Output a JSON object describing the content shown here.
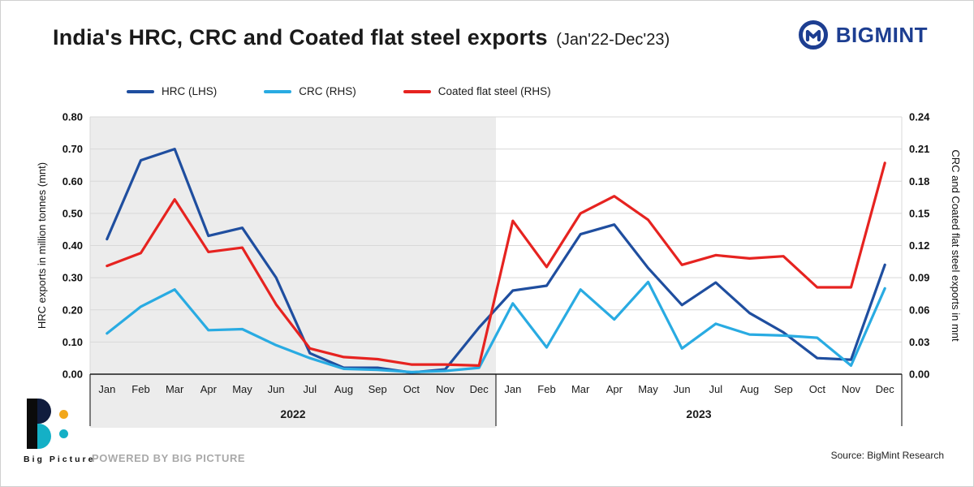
{
  "header": {
    "title": "India's HRC, CRC and Coated flat steel exports",
    "subtitle": "(Jan'22-Dec'23)",
    "brand": "BIGMINT"
  },
  "legend": [
    {
      "label": "HRC (LHS)",
      "color": "#1f4e9f"
    },
    {
      "label": "CRC (RHS)",
      "color": "#29abe2"
    },
    {
      "label": "Coated flat steel (RHS)",
      "color": "#e62320"
    }
  ],
  "chart_data": {
    "type": "line",
    "x": [
      "Jan",
      "Feb",
      "Mar",
      "Apr",
      "May",
      "Jun",
      "Jul",
      "Aug",
      "Sep",
      "Oct",
      "Nov",
      "Dec",
      "Jan",
      "Feb",
      "Mar",
      "Apr",
      "May",
      "Jun",
      "Jul",
      "Aug",
      "Sep",
      "Oct",
      "Nov",
      "Dec"
    ],
    "year_groups": [
      {
        "label": "2022",
        "months": 12,
        "shaded": true
      },
      {
        "label": "2023",
        "months": 12,
        "shaded": false
      }
    ],
    "left_axis": {
      "label": "HRC exports in million tonnes (mnt)",
      "min": 0,
      "max": 0.8,
      "step": 0.1,
      "ticks": [
        "0.00",
        "0.10",
        "0.20",
        "0.30",
        "0.40",
        "0.50",
        "0.60",
        "0.70",
        "0.80"
      ]
    },
    "right_axis": {
      "label": "CRC and Coated flat steel exports in mnt",
      "min": 0,
      "max": 0.24,
      "step": 0.03,
      "ticks": [
        "0.00",
        "0.03",
        "0.06",
        "0.09",
        "0.12",
        "0.15",
        "0.18",
        "0.21",
        "0.24"
      ]
    },
    "grid": true,
    "legend_position": "top-left",
    "series": [
      {
        "name": "HRC (LHS)",
        "axis": "left",
        "color": "#1f4e9f",
        "values": [
          0.42,
          0.665,
          0.7,
          0.43,
          0.455,
          0.3,
          0.065,
          0.02,
          0.02,
          0.005,
          0.015,
          0.145,
          0.26,
          0.275,
          0.435,
          0.465,
          0.33,
          0.215,
          0.285,
          0.19,
          0.13,
          0.05,
          0.045,
          0.34
        ]
      },
      {
        "name": "CRC (RHS)",
        "axis": "right",
        "color": "#29abe2",
        "values": [
          0.038,
          0.063,
          0.079,
          0.041,
          0.042,
          0.027,
          0.015,
          0.005,
          0.004,
          0.002,
          0.003,
          0.006,
          0.066,
          0.025,
          0.079,
          0.051,
          0.086,
          0.024,
          0.047,
          0.037,
          0.036,
          0.034,
          0.008,
          0.08
        ]
      },
      {
        "name": "Coated flat steel (RHS)",
        "axis": "right",
        "color": "#e62320",
        "values": [
          0.101,
          0.113,
          0.163,
          0.114,
          0.118,
          0.065,
          0.024,
          0.016,
          0.014,
          0.009,
          0.009,
          0.008,
          0.143,
          0.1,
          0.15,
          0.166,
          0.144,
          0.102,
          0.111,
          0.108,
          0.11,
          0.081,
          0.081,
          0.197
        ]
      }
    ]
  },
  "footer": {
    "logo_text": "Big Picture",
    "powered_by": "POWERED BY BIG PICTURE",
    "source": "Source: BigMint Research"
  }
}
